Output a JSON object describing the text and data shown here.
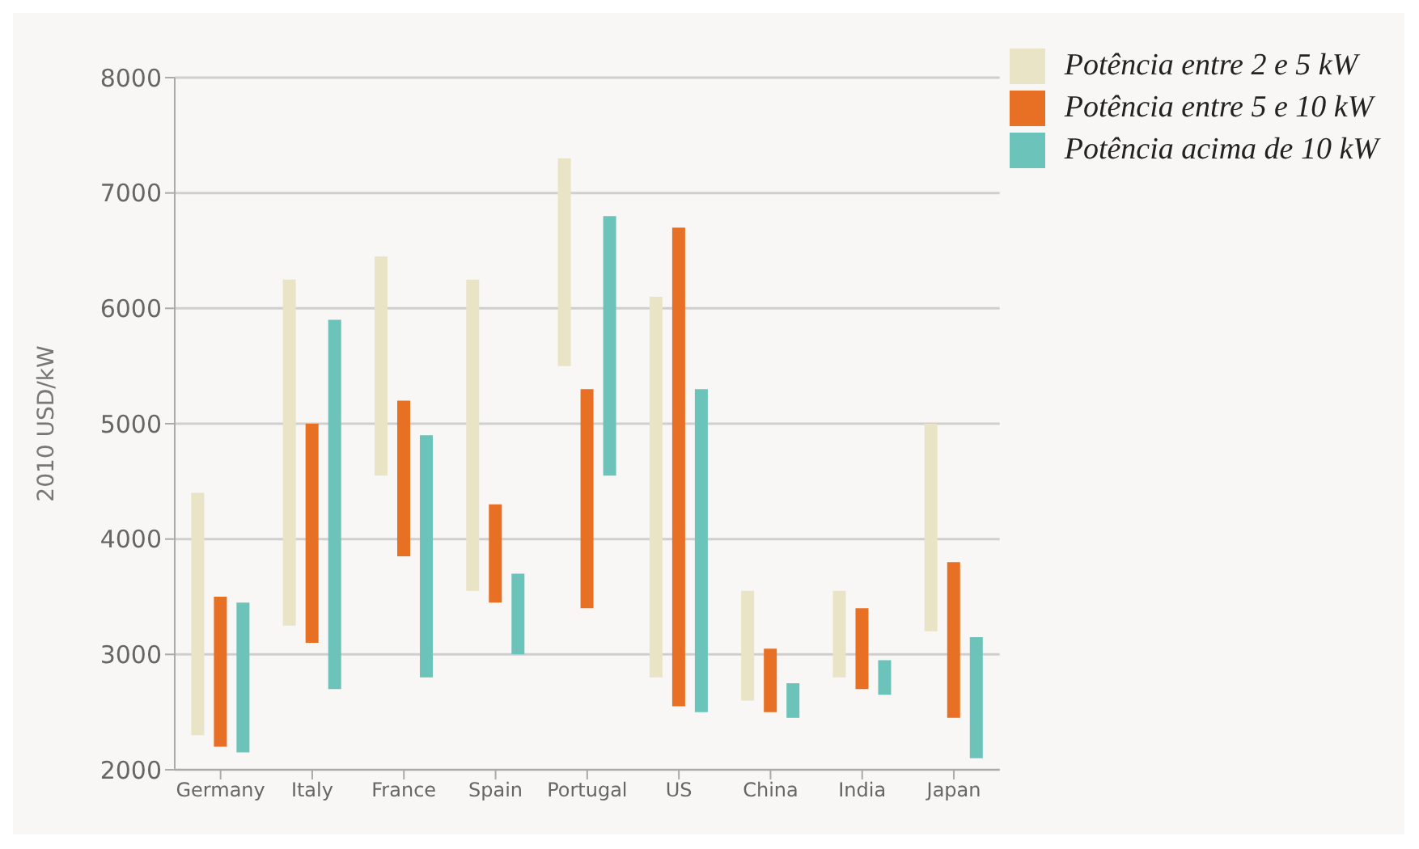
{
  "chart_data": {
    "type": "bar",
    "ylabel": "2010 USD/kW",
    "categories": [
      "Germany",
      "Italy",
      "France",
      "Spain",
      "Portugal",
      "US",
      "China",
      "India",
      "Japan"
    ],
    "series": [
      {
        "name": "Potência entre 2 e 5 kW",
        "color": "#e9e4c5",
        "base": [
          2300,
          3250,
          4550,
          3550,
          5500,
          2800,
          2600,
          2800,
          3200
        ],
        "values": [
          2100,
          3000,
          1900,
          2700,
          1800,
          3300,
          950,
          750,
          1800
        ]
      },
      {
        "name": "Potência entre 5 e 10 kW",
        "color": "#e87025",
        "base": [
          2200,
          3100,
          3850,
          3450,
          3400,
          2550,
          2500,
          2700,
          2450
        ],
        "values": [
          1300,
          1900,
          1350,
          850,
          1900,
          4150,
          550,
          700,
          1350
        ]
      },
      {
        "name": "Potência acima de 10 kW",
        "color": "#6cc3b9",
        "base": [
          2150,
          2700,
          2800,
          3000,
          4550,
          2500,
          2450,
          2650,
          2100
        ],
        "values": [
          1300,
          3200,
          2100,
          700,
          2250,
          2800,
          300,
          300,
          1050
        ]
      }
    ],
    "ylim": [
      2000,
      8000
    ],
    "yticks": [
      2000,
      3000,
      4000,
      5000,
      6000,
      7000,
      8000
    ],
    "grid": "y",
    "legend": "top right"
  }
}
